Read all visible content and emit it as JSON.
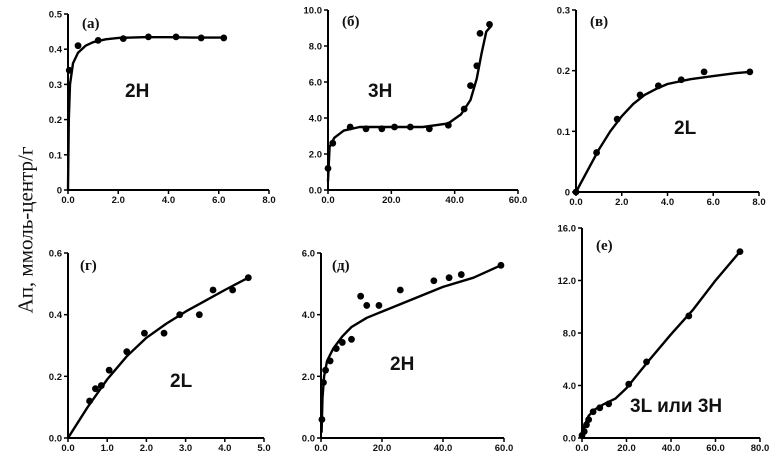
{
  "ylabel": "Ап, ммоль-центр/г",
  "chart_data": [
    {
      "type": "scatter",
      "panel_label": "(а)",
      "curve_label": "2H",
      "xlim": [
        0,
        8
      ],
      "ylim": [
        0,
        0.5
      ],
      "xticks": [
        "0.0",
        "2.0",
        "4.0",
        "6.0",
        "8.0"
      ],
      "yticks": [
        "0",
        "0.1",
        "0.2",
        "0.3",
        "0.4",
        "0.5"
      ],
      "points": [
        [
          0.05,
          0.34
        ],
        [
          0.4,
          0.41
        ],
        [
          1.2,
          0.425
        ],
        [
          2.2,
          0.43
        ],
        [
          3.2,
          0.435
        ],
        [
          4.3,
          0.435
        ],
        [
          5.3,
          0.432
        ],
        [
          6.2,
          0.432
        ]
      ],
      "curve": [
        [
          0.0,
          0.0
        ],
        [
          0.03,
          0.2
        ],
        [
          0.08,
          0.3
        ],
        [
          0.2,
          0.36
        ],
        [
          0.4,
          0.39
        ],
        [
          0.7,
          0.41
        ],
        [
          1.0,
          0.42
        ],
        [
          1.5,
          0.428
        ],
        [
          2.0,
          0.432
        ],
        [
          3.0,
          0.434
        ],
        [
          4.0,
          0.434
        ],
        [
          5.0,
          0.433
        ],
        [
          6.2,
          0.433
        ]
      ]
    },
    {
      "type": "scatter",
      "panel_label": "(б)",
      "curve_label": "3H",
      "xlim": [
        0,
        60
      ],
      "ylim": [
        0,
        10
      ],
      "xticks": [
        "0.0",
        "20.0",
        "40.0",
        "60.0"
      ],
      "yticks": [
        "0.0",
        "2.0",
        "4.0",
        "6.0",
        "8.0",
        "10.0"
      ],
      "points": [
        [
          0,
          1.2
        ],
        [
          1.5,
          2.6
        ],
        [
          7,
          3.5
        ],
        [
          12,
          3.4
        ],
        [
          17,
          3.4
        ],
        [
          21,
          3.5
        ],
        [
          26,
          3.5
        ],
        [
          32,
          3.4
        ],
        [
          38,
          3.6
        ],
        [
          43,
          4.5
        ],
        [
          45,
          5.8
        ],
        [
          47,
          6.9
        ],
        [
          48,
          8.7
        ],
        [
          51,
          9.2
        ]
      ],
      "curve": [
        [
          0,
          0.5
        ],
        [
          0.5,
          2.4
        ],
        [
          2,
          2.9
        ],
        [
          5,
          3.3
        ],
        [
          10,
          3.5
        ],
        [
          20,
          3.5
        ],
        [
          30,
          3.5
        ],
        [
          38,
          3.7
        ],
        [
          42,
          4.2
        ],
        [
          45,
          5.0
        ],
        [
          47,
          6.2
        ],
        [
          48.5,
          7.6
        ],
        [
          50,
          8.8
        ],
        [
          51.5,
          9.1
        ]
      ]
    },
    {
      "type": "scatter",
      "panel_label": "(в)",
      "curve_label": "2L",
      "xlim": [
        0,
        8
      ],
      "ylim": [
        0,
        0.3
      ],
      "xticks": [
        "0.0",
        "2.0",
        "4.0",
        "6.0",
        "8.0"
      ],
      "yticks": [
        "0",
        "0.1",
        "0.2",
        "0.3"
      ],
      "points": [
        [
          0,
          0.0
        ],
        [
          0.9,
          0.065
        ],
        [
          1.8,
          0.12
        ],
        [
          2.8,
          0.16
        ],
        [
          3.6,
          0.175
        ],
        [
          4.6,
          0.185
        ],
        [
          5.6,
          0.198
        ],
        [
          7.6,
          0.198
        ]
      ],
      "curve": [
        [
          0,
          0.0
        ],
        [
          0.5,
          0.035
        ],
        [
          1.0,
          0.07
        ],
        [
          1.5,
          0.1
        ],
        [
          2.0,
          0.125
        ],
        [
          2.5,
          0.145
        ],
        [
          3.0,
          0.16
        ],
        [
          3.5,
          0.17
        ],
        [
          4.0,
          0.178
        ],
        [
          5.0,
          0.186
        ],
        [
          6.0,
          0.191
        ],
        [
          7.0,
          0.196
        ],
        [
          7.6,
          0.198
        ]
      ]
    },
    {
      "type": "scatter",
      "panel_label": "(г)",
      "curve_label": "2L",
      "xlim": [
        0,
        5
      ],
      "ylim": [
        0,
        0.6
      ],
      "xticks": [
        "0.0",
        "1.0",
        "2.0",
        "3.0",
        "4.0",
        "5.0"
      ],
      "yticks": [
        "0.0",
        "0.2",
        "0.4",
        "0.6"
      ],
      "points": [
        [
          0.55,
          0.12
        ],
        [
          0.7,
          0.16
        ],
        [
          0.85,
          0.17
        ],
        [
          1.05,
          0.22
        ],
        [
          1.5,
          0.28
        ],
        [
          1.95,
          0.34
        ],
        [
          2.45,
          0.34
        ],
        [
          2.85,
          0.4
        ],
        [
          3.35,
          0.4
        ],
        [
          3.7,
          0.48
        ],
        [
          4.2,
          0.48
        ],
        [
          4.6,
          0.52
        ]
      ],
      "curve": [
        [
          0,
          0.0
        ],
        [
          0.5,
          0.1
        ],
        [
          1.0,
          0.19
        ],
        [
          1.5,
          0.265
        ],
        [
          2.0,
          0.325
        ],
        [
          2.5,
          0.37
        ],
        [
          3.0,
          0.41
        ],
        [
          3.5,
          0.445
        ],
        [
          4.0,
          0.48
        ],
        [
          4.6,
          0.52
        ]
      ]
    },
    {
      "type": "scatter",
      "panel_label": "(д)",
      "curve_label": "2H",
      "xlim": [
        0,
        60
      ],
      "ylim": [
        0,
        6
      ],
      "xticks": [
        "0.0",
        "20.0",
        "40.0",
        "60.0"
      ],
      "yticks": [
        "0.0",
        "2.0",
        "4.0",
        "6.0"
      ],
      "points": [
        [
          0.3,
          0.6
        ],
        [
          0.8,
          1.8
        ],
        [
          1.5,
          2.2
        ],
        [
          3,
          2.5
        ],
        [
          5,
          2.9
        ],
        [
          7,
          3.1
        ],
        [
          10,
          3.2
        ],
        [
          13,
          4.6
        ],
        [
          15,
          4.3
        ],
        [
          19,
          4.3
        ],
        [
          26,
          4.8
        ],
        [
          37,
          5.1
        ],
        [
          42,
          5.2
        ],
        [
          46,
          5.3
        ],
        [
          59,
          5.6
        ]
      ],
      "curve": [
        [
          0.2,
          0.2
        ],
        [
          0.5,
          1.3
        ],
        [
          1,
          2.0
        ],
        [
          2,
          2.5
        ],
        [
          4,
          2.9
        ],
        [
          7,
          3.3
        ],
        [
          10,
          3.6
        ],
        [
          15,
          3.9
        ],
        [
          20,
          4.1
        ],
        [
          30,
          4.5
        ],
        [
          40,
          4.9
        ],
        [
          50,
          5.2
        ],
        [
          59,
          5.6
        ]
      ]
    },
    {
      "type": "scatter",
      "panel_label": "(е)",
      "curve_label": "3L или 3H",
      "xlim": [
        0,
        80
      ],
      "ylim": [
        0,
        16
      ],
      "xticks": [
        "0.0",
        "20.0",
        "40.0",
        "60.0",
        "80.0"
      ],
      "yticks": [
        "0.0",
        "4.0",
        "8.0",
        "12.0",
        "16.0"
      ],
      "points": [
        [
          0,
          0.2
        ],
        [
          1,
          0.5
        ],
        [
          2,
          1.0
        ],
        [
          3,
          1.4
        ],
        [
          5,
          2.0
        ],
        [
          8,
          2.3
        ],
        [
          12,
          2.6
        ],
        [
          21,
          4.1
        ],
        [
          29,
          5.8
        ],
        [
          48,
          9.3
        ],
        [
          71,
          14.2
        ]
      ],
      "curve": [
        [
          0,
          0.0
        ],
        [
          1,
          0.9
        ],
        [
          3,
          1.7
        ],
        [
          6,
          2.2
        ],
        [
          10,
          2.6
        ],
        [
          15,
          3.0
        ],
        [
          20,
          3.8
        ],
        [
          30,
          5.9
        ],
        [
          40,
          7.9
        ],
        [
          50,
          9.8
        ],
        [
          60,
          12.0
        ],
        [
          71,
          14.2
        ]
      ]
    }
  ]
}
